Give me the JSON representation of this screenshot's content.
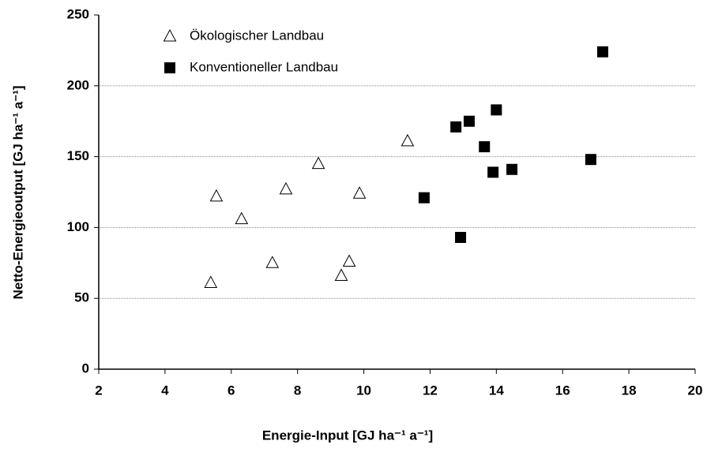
{
  "chart_data": {
    "type": "scatter",
    "xlabel": "Energie-Input  [GJ ha⁻¹ a⁻¹]",
    "ylabel": "Netto-Energieoutput [GJ ha⁻¹ a⁻¹]",
    "xlim": [
      2,
      20
    ],
    "xticks": [
      2,
      4,
      6,
      8,
      10,
      12,
      14,
      16,
      18,
      20
    ],
    "ylim": [
      0,
      250
    ],
    "yticks": [
      0,
      50,
      100,
      150,
      200,
      250
    ],
    "grid": true,
    "legend": "upper left",
    "series": [
      {
        "name": "Ökologischer Landbau",
        "color": "#000000",
        "marker": "open-triangle",
        "x": [
          5.38,
          5.55,
          6.31,
          7.24,
          7.65,
          8.63,
          9.32,
          9.56,
          9.87,
          11.32
        ],
        "values": [
          61,
          122,
          106,
          75,
          127,
          145,
          66,
          76,
          124,
          161
        ]
      },
      {
        "name": "Konventioneller Landbau",
        "color": "#000000",
        "marker": "filled-square",
        "x": [
          11.82,
          12.92,
          12.78,
          13.18,
          13.64,
          13.9,
          14.0,
          14.47,
          16.85,
          17.21
        ],
        "values": [
          121,
          93,
          171,
          175,
          157,
          139,
          183,
          141,
          148,
          224
        ]
      }
    ]
  }
}
